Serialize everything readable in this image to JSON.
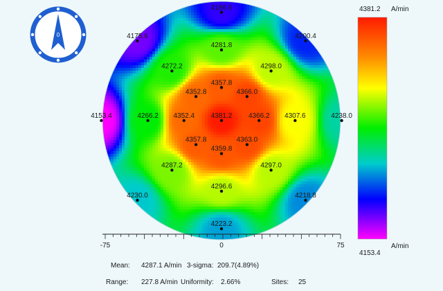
{
  "chart_data": {
    "type": "heatmap",
    "title": "",
    "units": "A/min",
    "colorbar": {
      "max": 4381.2,
      "min": 4153.4,
      "max_label": "4381.2",
      "min_label": "4153.4",
      "unit_label": "A/min"
    },
    "xaxis": {
      "min": -75,
      "max": 75,
      "ticks": [
        "-75",
        "0",
        "75"
      ]
    },
    "sites": [
      {
        "x": 0,
        "y": 72,
        "value": 4186.6,
        "label": "4186.6"
      },
      {
        "x": -56,
        "y": 53,
        "value": 4175.6,
        "label": "4175.6"
      },
      {
        "x": 56,
        "y": 53,
        "value": 4200.4,
        "label": "4200.4"
      },
      {
        "x": 0,
        "y": 47,
        "value": 4281.8,
        "label": "4281.8"
      },
      {
        "x": -33,
        "y": 33,
        "value": 4272.2,
        "label": "4272.2"
      },
      {
        "x": 33,
        "y": 33,
        "value": 4298.0,
        "label": "4298.0"
      },
      {
        "x": 0,
        "y": 22,
        "value": 4357.8,
        "label": "4357.8"
      },
      {
        "x": -17,
        "y": 16,
        "value": 4352.8,
        "label": "4352.8"
      },
      {
        "x": 17,
        "y": 16,
        "value": 4366.0,
        "label": "4366.0"
      },
      {
        "x": -80,
        "y": 0,
        "value": 4153.4,
        "label": "4153.4"
      },
      {
        "x": -49,
        "y": 0,
        "value": 4266.2,
        "label": "4266.2"
      },
      {
        "x": -25,
        "y": 0,
        "value": 4352.4,
        "label": "4352.4"
      },
      {
        "x": 0,
        "y": 0,
        "value": 4381.2,
        "label": "4381.2"
      },
      {
        "x": 25,
        "y": 0,
        "value": 4366.2,
        "label": "4366.2"
      },
      {
        "x": 49,
        "y": 0,
        "value": 4307.6,
        "label": "4307.6"
      },
      {
        "x": 80,
        "y": 0,
        "value": 4238.0,
        "label": "4238.0"
      },
      {
        "x": -17,
        "y": -16,
        "value": 4357.8,
        "label": "4357.8"
      },
      {
        "x": 17,
        "y": -16,
        "value": 4363.0,
        "label": "4363.0"
      },
      {
        "x": 0,
        "y": -22,
        "value": 4359.8,
        "label": "4359.8"
      },
      {
        "x": -33,
        "y": -33,
        "value": 4287.2,
        "label": "4287.2"
      },
      {
        "x": 33,
        "y": -33,
        "value": 4297.0,
        "label": "4297.0"
      },
      {
        "x": 0,
        "y": -47,
        "value": 4296.6,
        "label": "4296.6"
      },
      {
        "x": -56,
        "y": -53,
        "value": 4230.0,
        "label": "4230.0"
      },
      {
        "x": 56,
        "y": -53,
        "value": 4218.8,
        "label": "4218.8"
      },
      {
        "x": 0,
        "y": -72,
        "value": 4223.2,
        "label": "4223.2"
      }
    ]
  },
  "stats": {
    "mean_label": "Mean:",
    "mean_value": "4287.1 A/min",
    "sigma_label": "3-sigma:",
    "sigma_value": "209.7(4.89%)",
    "range_label": "Range:",
    "range_value": "227.8 A/min",
    "uniformity_label": "Uniformity:",
    "uniformity_value": "2.66%",
    "sites_label": "Sites:",
    "sites_value": "25"
  },
  "compass": {
    "marker": "0"
  }
}
